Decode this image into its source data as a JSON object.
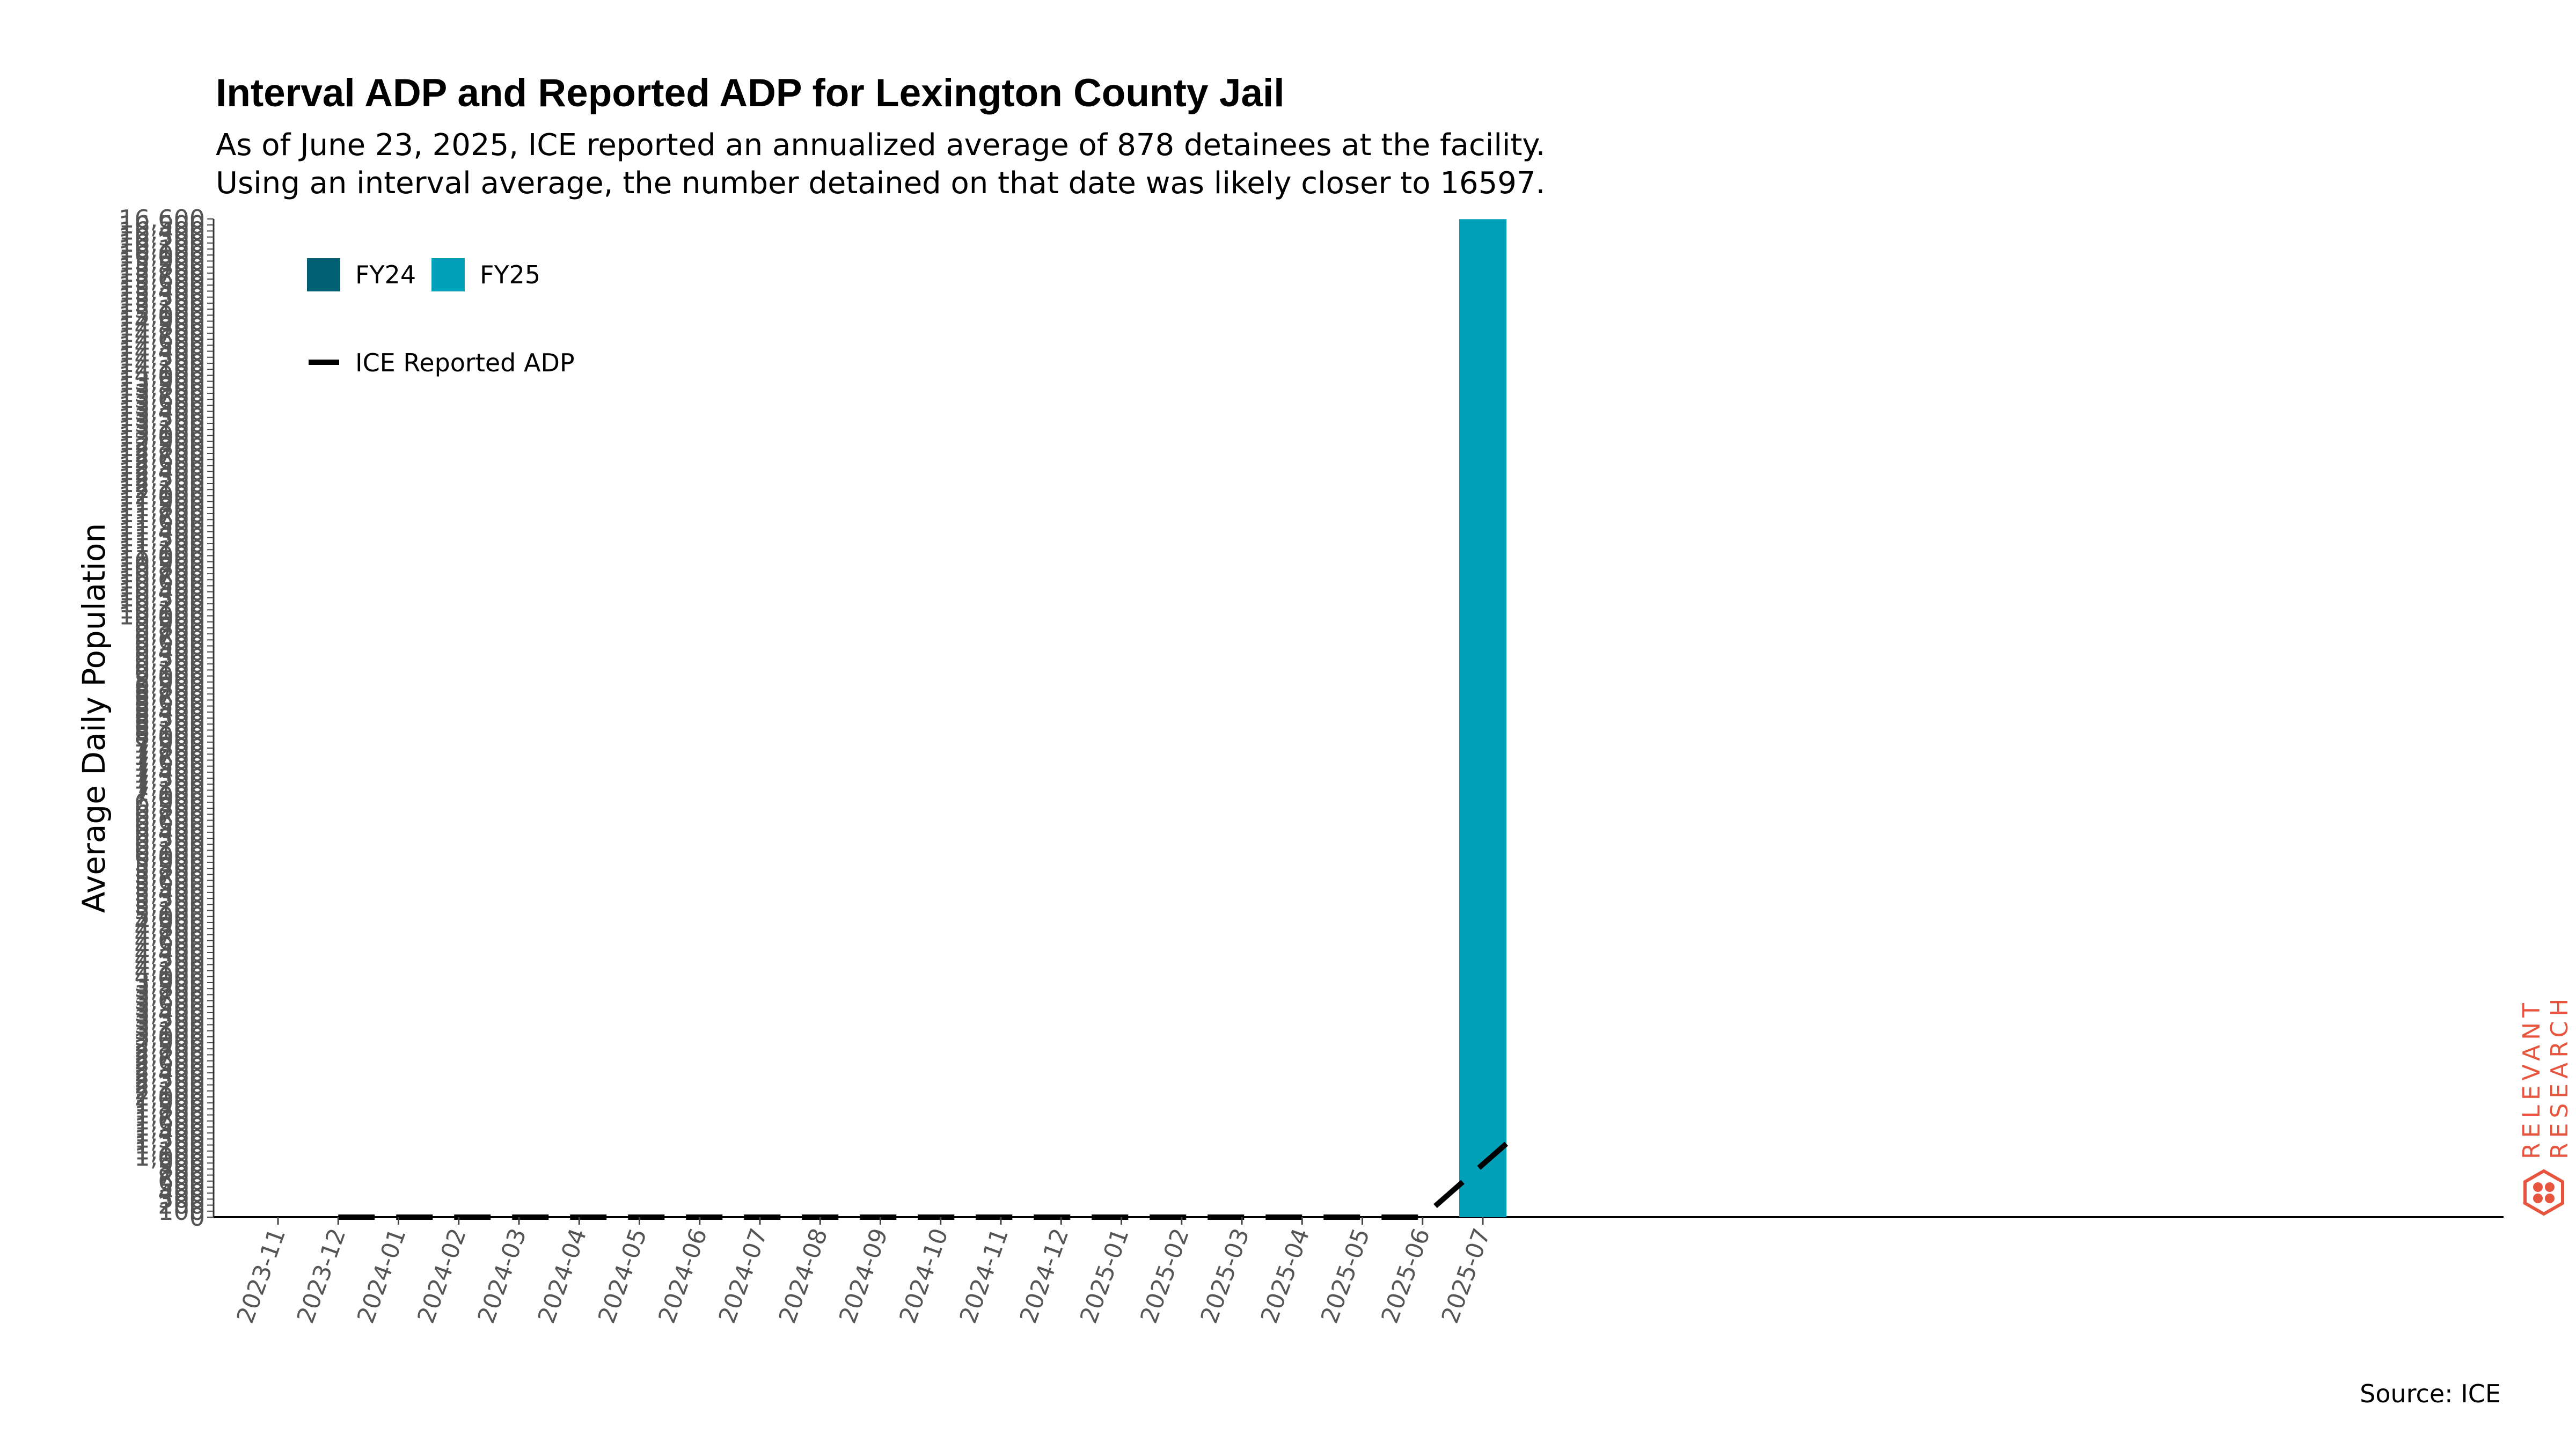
{
  "chart_data": {
    "type": "bar",
    "title": "Interval ADP and Reported ADP for Lexington County Jail",
    "subtitle_lines": [
      "As of June 23, 2025, ICE reported an annualized average of 878 detainees at the facility.",
      "Using an interval average, the number detained on that date was likely closer to 16597."
    ],
    "xlabel": "",
    "ylabel": "Average Daily Population",
    "categories": [
      "2023-11",
      "2023-12",
      "2024-01",
      "2024-02",
      "2024-03",
      "2024-04",
      "2024-05",
      "2024-06",
      "2024-07",
      "2024-08",
      "2024-09",
      "2024-10",
      "2024-11",
      "2024-12",
      "2025-01",
      "2025-02",
      "2025-03",
      "2025-04",
      "2025-05",
      "2025-06",
      "2025-07"
    ],
    "series": [
      {
        "name": "FY24",
        "color": "#005f73",
        "values": [
          0,
          0,
          0,
          0,
          0,
          0,
          0,
          0,
          0,
          0,
          0,
          0,
          0,
          0,
          0,
          0,
          0,
          0,
          0,
          0,
          0
        ]
      },
      {
        "name": "FY25",
        "color": "#00a0b8",
        "values": [
          0,
          0,
          0,
          0,
          0,
          0,
          0,
          0,
          0,
          0,
          0,
          0,
          0,
          0,
          0,
          0,
          0,
          0,
          0,
          0,
          16597
        ]
      }
    ],
    "line_series": {
      "name": "ICE Reported ADP",
      "color": "#000000",
      "style": "dashed",
      "x": [
        "2023-12",
        "2024-01",
        "2024-02",
        "2024-03",
        "2024-04",
        "2024-05",
        "2024-06",
        "2024-07",
        "2024-08",
        "2024-09",
        "2024-10",
        "2024-11",
        "2024-12",
        "2025-01",
        "2025-02",
        "2025-03",
        "2025-04",
        "2025-05",
        "2025-06",
        "2025-07"
      ],
      "values": [
        0,
        0,
        0,
        0,
        0,
        0,
        0,
        0,
        0,
        0,
        0,
        0,
        0,
        0,
        0,
        0,
        0,
        0,
        0,
        878
      ]
    },
    "ylim": [
      0,
      16600
    ],
    "ytick_top_label": "16,600",
    "legend_placement": "top-left",
    "grid": false,
    "source": "Source: ICE"
  },
  "logo": {
    "text_line1": "RELEVANT",
    "text_line2": "RESEARCH",
    "color": "#e8553f"
  }
}
